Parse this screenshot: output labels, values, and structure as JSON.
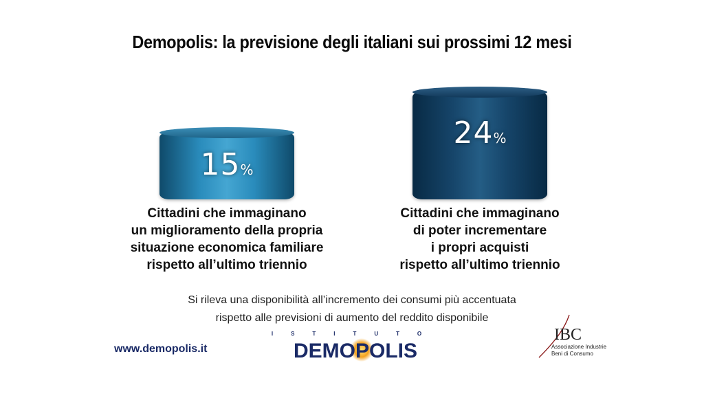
{
  "title": "Demopolis: la previsione degli italiani sui prossimi 12 mesi",
  "chart_data": {
    "type": "bar",
    "title": "Demopolis: la previsione degli italiani sui prossimi 12 mesi",
    "values": [
      15,
      24
    ],
    "unit": "%",
    "value_labels": [
      "15",
      "24"
    ],
    "categories": [
      [
        "Cittadini che immaginano",
        "un miglioramento della propria",
        "situazione economica familiare",
        "rispetto all’ultimo triennio"
      ],
      [
        "Cittadini che immaginano",
        "di poter incrementare",
        "i propri acquisti",
        "rispetto all’ultimo triennio"
      ]
    ],
    "colors": [
      "#2a8cbc",
      "#16456a"
    ],
    "ylim": [
      0,
      24
    ]
  },
  "note": [
    "Si rileva una disponibilità all’incremento dei consumi più accentuata",
    "rispetto alle previsioni di aumento del reddito disponibile"
  ],
  "footer": {
    "website": "www.demopolis.it",
    "logo_istituto": "ISTITUTO",
    "logo_demopolis": "DEMOPOLIS",
    "ibc_logo": "IBC",
    "ibc_line1": "Associazione Industrie",
    "ibc_line2": "Beni di Consumo"
  }
}
